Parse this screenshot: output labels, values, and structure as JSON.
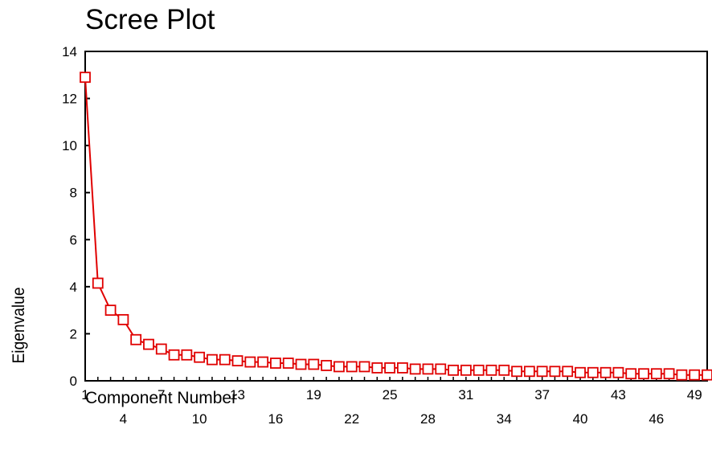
{
  "chart_data": {
    "type": "line",
    "title": "Scree Plot",
    "xlabel": "Component Number",
    "ylabel": "Eigenvalue",
    "x": [
      1,
      2,
      3,
      4,
      5,
      6,
      7,
      8,
      9,
      10,
      11,
      12,
      13,
      14,
      15,
      16,
      17,
      18,
      19,
      20,
      21,
      22,
      23,
      24,
      25,
      26,
      27,
      28,
      29,
      30,
      31,
      32,
      33,
      34,
      35,
      36,
      37,
      38,
      39,
      40,
      41,
      42,
      43,
      44,
      45,
      46,
      47,
      48,
      49,
      50
    ],
    "series": [
      {
        "values": [
          12.9,
          4.15,
          3.0,
          2.6,
          1.75,
          1.55,
          1.35,
          1.1,
          1.1,
          1.0,
          0.9,
          0.9,
          0.85,
          0.8,
          0.8,
          0.75,
          0.75,
          0.7,
          0.7,
          0.65,
          0.6,
          0.6,
          0.6,
          0.55,
          0.55,
          0.55,
          0.5,
          0.5,
          0.5,
          0.45,
          0.45,
          0.45,
          0.45,
          0.45,
          0.4,
          0.4,
          0.4,
          0.4,
          0.4,
          0.35,
          0.35,
          0.35,
          0.35,
          0.3,
          0.3,
          0.3,
          0.3,
          0.25,
          0.25,
          0.25
        ],
        "color": "#e00000"
      }
    ],
    "x_tick_labels_top": [
      "1",
      "7",
      "13",
      "19",
      "25",
      "31",
      "37",
      "43",
      "49"
    ],
    "x_tick_positions_top": [
      1,
      7,
      13,
      19,
      25,
      31,
      37,
      43,
      49
    ],
    "x_tick_labels_bottom": [
      "4",
      "10",
      "16",
      "22",
      "28",
      "34",
      "40",
      "46"
    ],
    "x_tick_positions_bottom": [
      4,
      10,
      16,
      22,
      28,
      34,
      40,
      46
    ],
    "y_ticks": [
      0,
      2,
      4,
      6,
      8,
      10,
      12,
      14
    ],
    "y_tick_labels": [
      "0",
      "2",
      "4",
      "6",
      "8",
      "10",
      "12",
      "14"
    ],
    "xlim": [
      1,
      50
    ],
    "ylim": [
      0,
      14
    ],
    "grid": false,
    "marker": "open-square"
  }
}
